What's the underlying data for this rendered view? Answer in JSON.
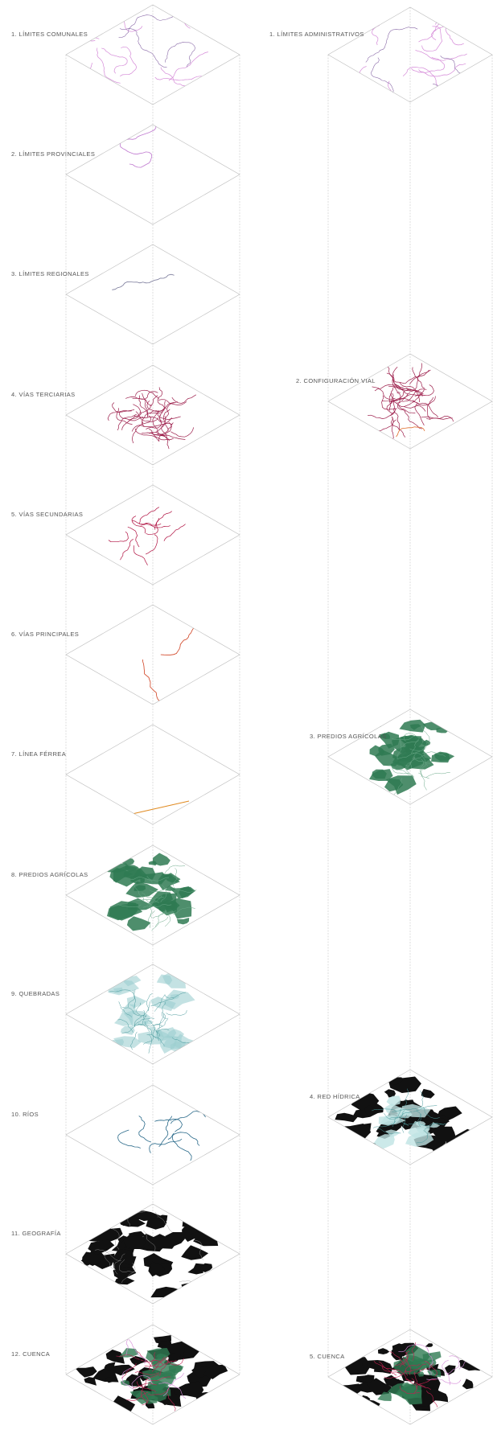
{
  "left": {
    "layers": [
      {
        "label": "1. LÍMITES COMUNALES"
      },
      {
        "label": "2. LÍMITES PROVINCIALES"
      },
      {
        "label": "3. LÍMITES REGIONALES"
      },
      {
        "label": "4. VÍAS TERCIARIAS"
      },
      {
        "label": "5. VÍAS SECUNDARIAS"
      },
      {
        "label": "6. VÍAS PRINCIPALES"
      },
      {
        "label": "7. LÍNEA FÉRREA"
      },
      {
        "label": "8. PREDIOS AGRÍCOLAS"
      },
      {
        "label": "9. QUEBRADAS"
      },
      {
        "label": "10. RÍOS"
      },
      {
        "label": "11. GEOGRAFÍA"
      },
      {
        "label": "12. CUENCA"
      }
    ]
  },
  "right": {
    "layers": [
      {
        "label": "1. LÍMITES ADMINISTRATIVOS"
      },
      {
        "label": "2. CONFIGURACIÓN VIAL"
      },
      {
        "label": "3. PREDIOS AGRÍCOLAS"
      },
      {
        "label": "4. RED HÍDRICA"
      },
      {
        "label": "5. CUENCA"
      }
    ]
  }
}
